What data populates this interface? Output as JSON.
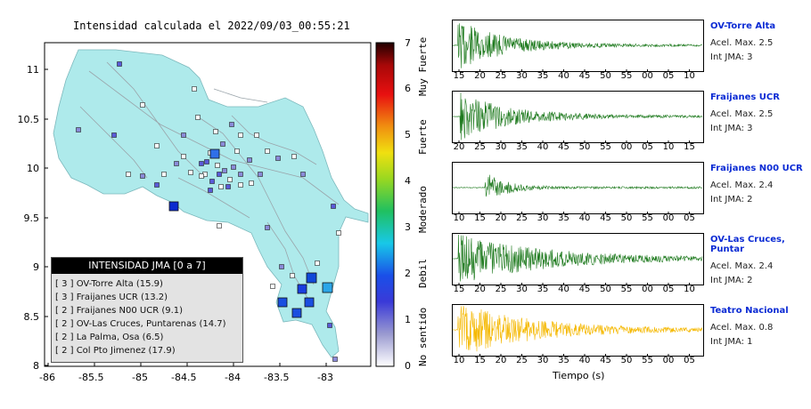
{
  "map": {
    "title": "Intensidad calculada el 2022/09/03_00:55:21",
    "x_ticks": [
      "-86",
      "-85.5",
      "-85",
      "-84.5",
      "-84",
      "-83.5",
      "-83"
    ],
    "y_ticks": [
      "11",
      "10.5",
      "10",
      "9.5",
      "9",
      "8.5",
      "8"
    ]
  },
  "colorbar": {
    "ticks": [
      "0",
      "1",
      "2",
      "3",
      "4",
      "5",
      "6",
      "7"
    ],
    "words": [
      "No sentido",
      "Debil",
      "Moderado",
      "Fuerte",
      "Muy Fuerte"
    ]
  },
  "legend": {
    "title": "INTENSIDAD JMA [0 a 7]",
    "items": [
      "[ 3 ]  OV-Torre Alta (15.9)",
      "[ 3 ]  Fraijanes UCR (13.2)",
      "[ 2 ]  Fraijanes N00 UCR (9.1)",
      "[ 2 ]  OV-Las Cruces, Puntarenas (14.7)",
      "[ 2 ]  La Palma, Osa (6.5)",
      "[ 2 ]  Col Pto Jimenez (17.9)"
    ]
  },
  "seismograms": [
    {
      "station": "OV-Torre Alta",
      "acel": "Acel. Max. 2.5",
      "int": "Int JMA: 3",
      "color": "#1e7a1e",
      "ticks": [
        "15",
        "20",
        "25",
        "30",
        "35",
        "40",
        "45",
        "50",
        "55",
        "00",
        "05",
        "10"
      ]
    },
    {
      "station": "Fraijanes UCR",
      "acel": "Acel. Max. 2.5",
      "int": "Int JMA: 3",
      "color": "#1e7a1e",
      "ticks": [
        "20",
        "25",
        "30",
        "35",
        "40",
        "45",
        "50",
        "55",
        "00",
        "05",
        "10",
        "15"
      ]
    },
    {
      "station": "Fraijanes N00 UCR",
      "acel": "Acel. Max. 2.4",
      "int": "Int JMA: 2",
      "color": "#1e7a1e",
      "ticks": [
        "10",
        "15",
        "20",
        "25",
        "30",
        "35",
        "40",
        "45",
        "50",
        "55",
        "00",
        "05"
      ]
    },
    {
      "station": "OV-Las Cruces, Puntar",
      "acel": "Acel. Max. 2.4",
      "int": "Int JMA: 2",
      "color": "#1e7a1e",
      "ticks": [
        "15",
        "20",
        "25",
        "30",
        "35",
        "40",
        "45",
        "50",
        "55",
        "00",
        "05",
        "10"
      ]
    },
    {
      "station": "Teatro Nacional",
      "acel": "Acel. Max. 0.8",
      "int": "Int JMA: 1",
      "color": "#f5b800",
      "ticks": [
        "10",
        "15",
        "20",
        "25",
        "30",
        "35",
        "40",
        "45",
        "50",
        "55",
        "00",
        "05"
      ]
    }
  ],
  "xlabel": "Tiempo (s)"
}
